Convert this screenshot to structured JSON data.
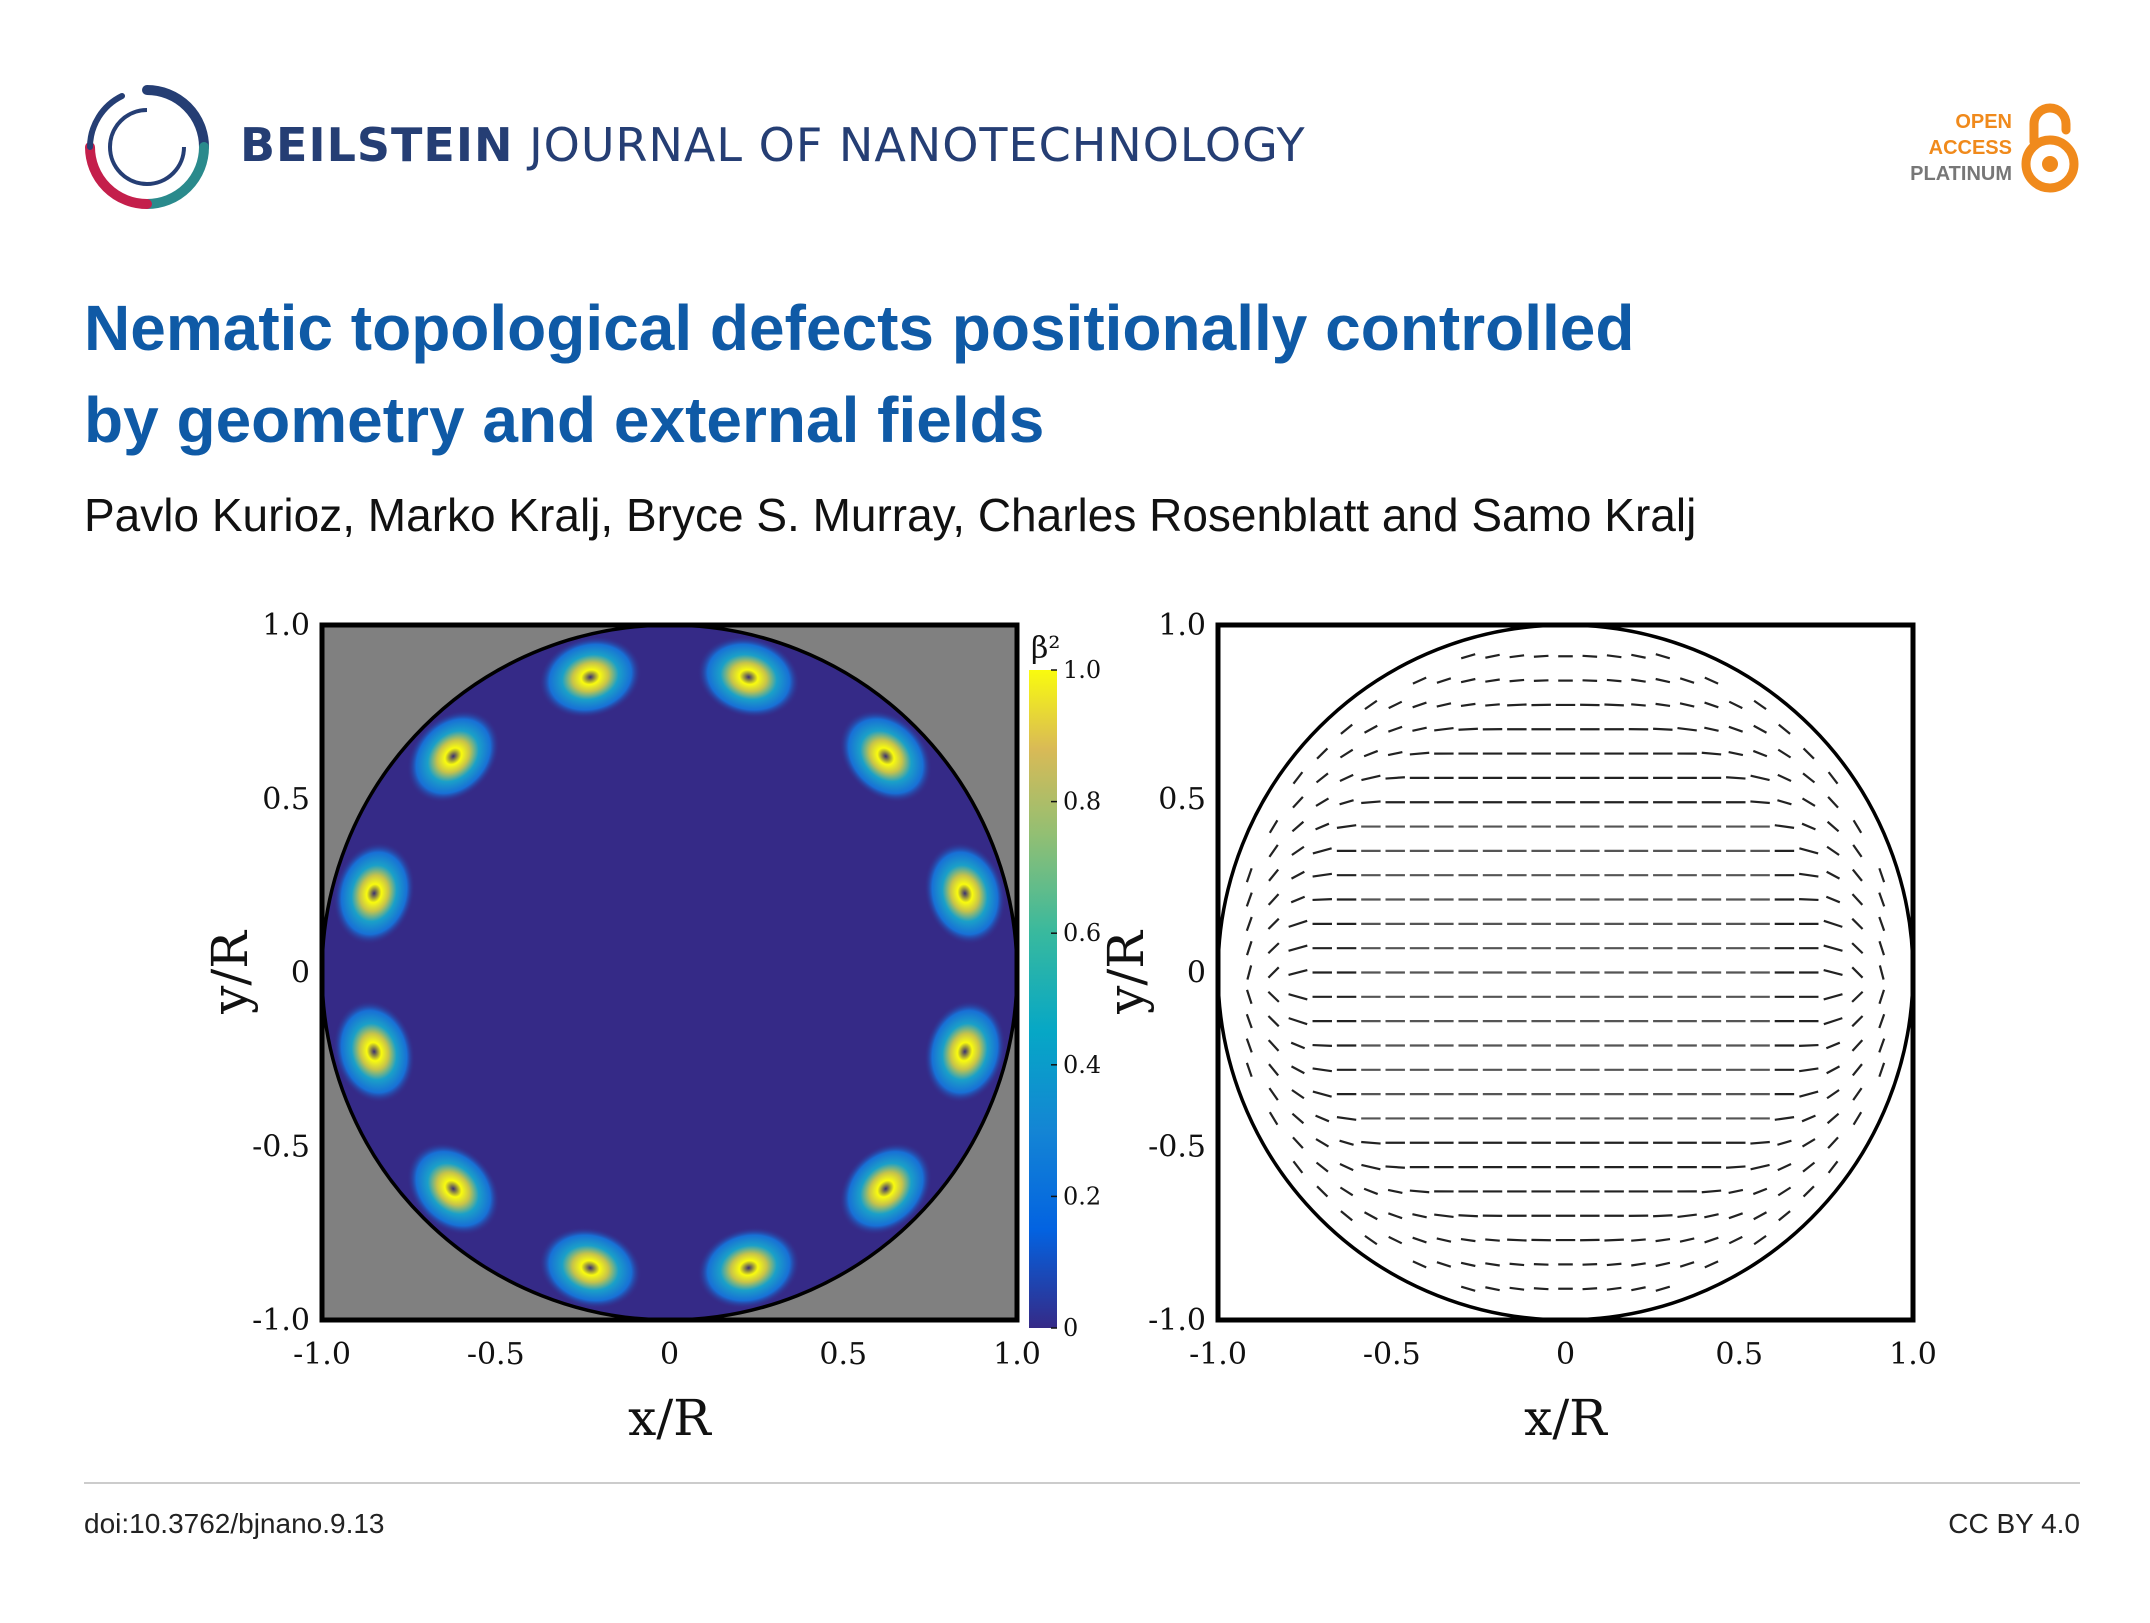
{
  "header": {
    "journal_brand": "BEILSTEIN",
    "journal_rest": "JOURNAL OF NANOTECHNOLOGY",
    "badge_line1": "OPEN",
    "badge_line2": "ACCESS",
    "badge_line3": "PLATINUM",
    "logo_icon": "beilstein-ring-logo",
    "lock_icon": "open-access-lock-icon"
  },
  "article": {
    "title_line1": "Nematic topological defects positionally controlled",
    "title_line2": "by geometry and external fields",
    "authors": "Pavlo Kurioz, Marko Kralj, Bryce S. Murray, Charles Rosenblatt and Samo Kralj"
  },
  "footer": {
    "doi": "doi:10.3762/bjnano.9.13",
    "license": "CC BY 4.0"
  },
  "colors": {
    "title_blue": "#0f5aa6",
    "journal_navy": "#253e74",
    "oa_orange": "#f08a1c",
    "disc_fill": "#352a87",
    "background_gray": "#808080"
  },
  "chart_data": [
    {
      "type": "heatmap",
      "title": "",
      "xlabel": "x/R",
      "ylabel": "y/R",
      "xlim": [
        -1.0,
        1.0
      ],
      "ylim": [
        -1.0,
        1.0
      ],
      "xticks": [
        "-1.0",
        "-0.5",
        "0",
        "0.5",
        "1.0"
      ],
      "yticks": [
        "1.0",
        "0.5",
        "0",
        "-0.5",
        "-1.0"
      ],
      "colorbar_label": "β²",
      "colorbar_range": [
        0,
        1.0
      ],
      "colorbar_ticks": [
        "1.0",
        "0.8",
        "0.6",
        "0.4",
        "0.2",
        "0"
      ],
      "defect_angles_deg": [
        15,
        45,
        75,
        105,
        135,
        165,
        195,
        225,
        255,
        285,
        315,
        345
      ],
      "defect_radius": 0.88
    },
    {
      "type": "scatter",
      "title": "",
      "xlabel": "x/R",
      "ylabel": "y/R",
      "xlim": [
        -1.0,
        1.0
      ],
      "ylim": [
        -1.0,
        1.0
      ],
      "xticks": [
        "-1.0",
        "-0.5",
        "0",
        "0.5",
        "1.0"
      ],
      "yticks": [
        "1.0",
        "0.5",
        "0",
        "-0.5",
        "-1.0"
      ],
      "field": "director",
      "grid_spacing": 0.07
    }
  ]
}
